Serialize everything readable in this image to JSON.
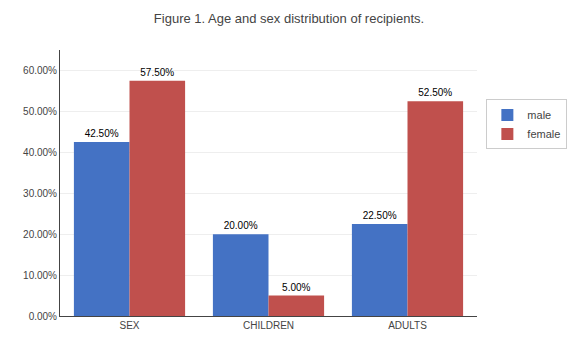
{
  "chart_data": {
    "type": "bar",
    "title": "Figure 1. Age and sex distribution of recipients.",
    "categories": [
      "SEX",
      "CHILDREN",
      "ADULTS"
    ],
    "series": [
      {
        "name": "male",
        "color": "#4472C4",
        "values": [
          0.425,
          0.2,
          0.225
        ],
        "value_labels": [
          "42.50%",
          "20.00%",
          "22.50%"
        ]
      },
      {
        "name": "female",
        "color": "#C0504D",
        "values": [
          0.575,
          0.05,
          0.525
        ],
        "value_labels": [
          "57.50%",
          "5.00%",
          "52.50%"
        ]
      }
    ],
    "ylim": [
      0,
      0.65
    ],
    "yticks": [
      {
        "value": 0.0,
        "label": "0.00%"
      },
      {
        "value": 0.1,
        "label": "10.00%"
      },
      {
        "value": 0.2,
        "label": "20.00%"
      },
      {
        "value": 0.3,
        "label": "30.00%"
      },
      {
        "value": 0.4,
        "label": "40.00%"
      },
      {
        "value": 0.5,
        "label": "50.00%"
      },
      {
        "value": 0.6,
        "label": "60.00%"
      }
    ],
    "grid": true,
    "legend": "right",
    "data_labels": true
  }
}
